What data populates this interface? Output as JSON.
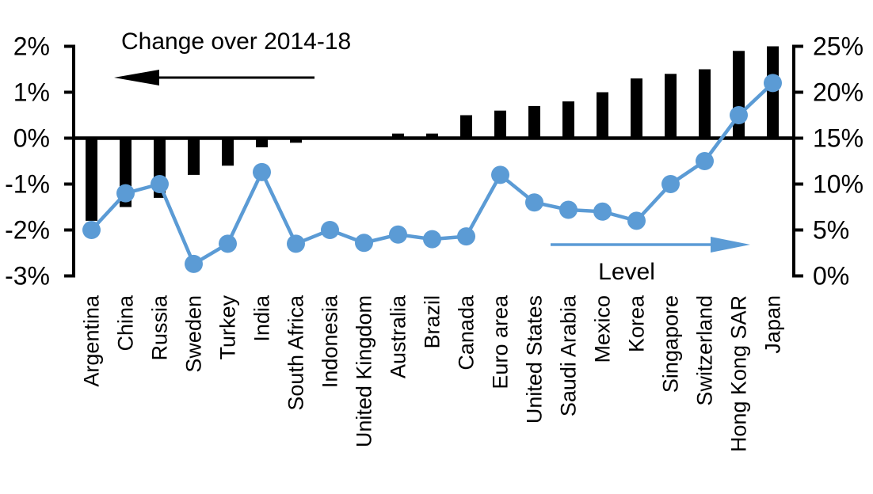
{
  "chart_data": {
    "type": "combo",
    "title": "",
    "categories": [
      "Argentina",
      "China",
      "Russia",
      "Sweden",
      "Turkey",
      "India",
      "South Africa",
      "Indonesia",
      "United Kingdom",
      "Australia",
      "Brazil",
      "Canada",
      "Euro area",
      "United States",
      "Saudi Arabia",
      "Mexico",
      "Korea",
      "Singapore",
      "Switzerland",
      "Hong Kong SAR",
      "Japan"
    ],
    "series": [
      {
        "name": "Change over 2014-18",
        "type": "bar",
        "axis": "left",
        "color": "#000000",
        "values": [
          -1.8,
          -1.5,
          -1.3,
          -0.8,
          -0.6,
          -0.2,
          -0.1,
          0,
          0,
          0.1,
          0.1,
          0.5,
          0.6,
          0.7,
          0.8,
          1.0,
          1.3,
          1.4,
          1.5,
          1.9,
          2.0
        ]
      },
      {
        "name": "Level",
        "type": "line",
        "axis": "right",
        "color": "#5B9BD5",
        "values": [
          5.0,
          9.0,
          10.0,
          1.3,
          3.5,
          11.3,
          3.5,
          5.0,
          3.6,
          4.5,
          4.0,
          4.3,
          11.0,
          8.0,
          7.2,
          7.0,
          6.0,
          10.0,
          12.5,
          17.5,
          21.0
        ]
      }
    ],
    "left_axis": {
      "min": -3,
      "max": 2,
      "tick_values": [
        2,
        1,
        0,
        -1,
        -2,
        -3
      ],
      "tick_labels": [
        "2%",
        "1%",
        "0%",
        "-1%",
        "-2%",
        "-3%"
      ]
    },
    "right_axis": {
      "min": 0,
      "max": 25,
      "tick_values": [
        25,
        20,
        15,
        10,
        5,
        0
      ],
      "tick_labels": [
        "25%",
        "20%",
        "15%",
        "10%",
        "5%",
        "0%"
      ]
    },
    "annotations": {
      "bar_label": "Change over 2014-18",
      "line_label": "Level"
    },
    "grid": false,
    "legend_position": "in-plot-arrow-annotations"
  }
}
